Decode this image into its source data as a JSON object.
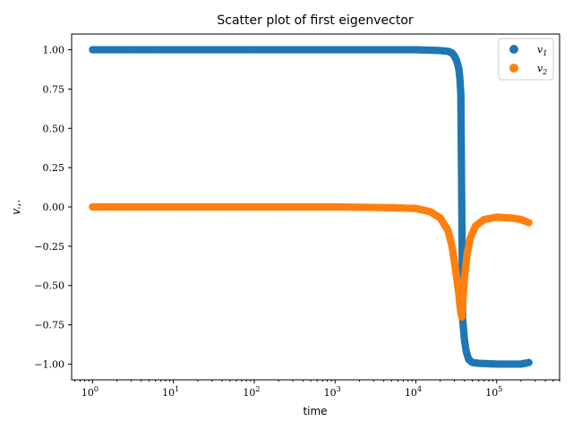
{
  "chart_data": {
    "type": "scatter",
    "title": "Scatter plot of first eigenvector",
    "xlabel": "time",
    "ylabel": "v.,.",
    "xscale": "log",
    "xlim": [
      0.55,
      600000
    ],
    "ylim": [
      -1.1,
      1.1
    ],
    "x_ticks": [
      1,
      10,
      100,
      1000,
      10000,
      100000
    ],
    "x_tick_labels": [
      "10^0",
      "10^1",
      "10^2",
      "10^3",
      "10^4",
      "10^5"
    ],
    "y_ticks": [
      1.0,
      0.75,
      0.5,
      0.25,
      0.0,
      -0.25,
      -0.5,
      -0.75,
      -1.0
    ],
    "y_tick_labels": [
      "1.00",
      "0.75",
      "0.50",
      "0.25",
      "0.00",
      "−0.25",
      "−0.50",
      "−0.75",
      "−1.00"
    ],
    "grid": false,
    "legend_position": "top-right",
    "series": [
      {
        "name": "v1",
        "color": "#1f77b4",
        "points": [
          [
            1,
            1.0
          ],
          [
            10,
            1.0
          ],
          [
            100,
            1.0
          ],
          [
            1000,
            1.0
          ],
          [
            10000,
            1.0
          ],
          [
            20000,
            0.995
          ],
          [
            25000,
            0.99
          ],
          [
            28000,
            0.98
          ],
          [
            30000,
            0.96
          ],
          [
            32000,
            0.93
          ],
          [
            34000,
            0.88
          ],
          [
            35000,
            0.82
          ],
          [
            36000,
            0.72
          ],
          [
            38000,
            -0.72
          ],
          [
            40000,
            -0.85
          ],
          [
            42000,
            -0.92
          ],
          [
            45000,
            -0.97
          ],
          [
            50000,
            -0.99
          ],
          [
            60000,
            -0.995
          ],
          [
            100000,
            -1.0
          ],
          [
            200000,
            -1.0
          ],
          [
            250000,
            -0.99
          ]
        ]
      },
      {
        "name": "v2",
        "color": "#ff7f0e",
        "points": [
          [
            1,
            0.0
          ],
          [
            10,
            0.0
          ],
          [
            100,
            0.0
          ],
          [
            1000,
            0.0
          ],
          [
            5000,
            -0.005
          ],
          [
            10000,
            -0.01
          ],
          [
            15000,
            -0.03
          ],
          [
            20000,
            -0.07
          ],
          [
            25000,
            -0.15
          ],
          [
            28000,
            -0.25
          ],
          [
            30000,
            -0.35
          ],
          [
            32000,
            -0.45
          ],
          [
            34000,
            -0.55
          ],
          [
            35000,
            -0.62
          ],
          [
            36000,
            -0.67
          ],
          [
            37000,
            -0.7
          ],
          [
            38000,
            -0.6
          ],
          [
            40000,
            -0.45
          ],
          [
            43000,
            -0.3
          ],
          [
            47000,
            -0.2
          ],
          [
            55000,
            -0.12
          ],
          [
            70000,
            -0.08
          ],
          [
            100000,
            -0.065
          ],
          [
            150000,
            -0.07
          ],
          [
            200000,
            -0.08
          ],
          [
            250000,
            -0.1
          ]
        ]
      }
    ]
  }
}
